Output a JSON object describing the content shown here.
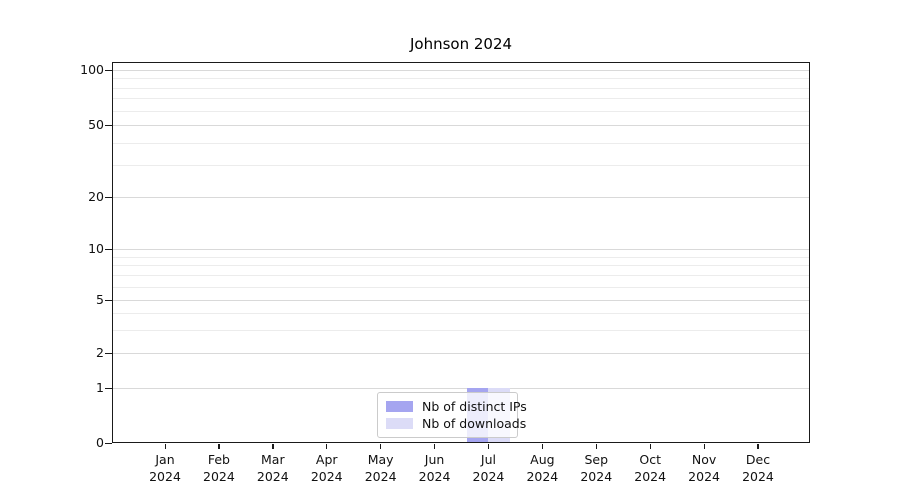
{
  "chart_data": {
    "type": "bar",
    "title": "Johnson 2024",
    "categories": [
      "Jan 2024",
      "Feb 2024",
      "Mar 2024",
      "Apr 2024",
      "May 2024",
      "Jun 2024",
      "Jul 2024",
      "Aug 2024",
      "Sep 2024",
      "Oct 2024",
      "Nov 2024",
      "Dec 2024"
    ],
    "series": [
      {
        "name": "Nb of distinct IPs",
        "color": "#a5a5f0",
        "values": [
          0,
          0,
          0,
          0,
          0,
          0,
          1,
          0,
          0,
          0,
          0,
          0
        ]
      },
      {
        "name": "Nb of downloads",
        "color": "#dcdcf7",
        "values": [
          0,
          0,
          0,
          0,
          0,
          0,
          1,
          0,
          0,
          0,
          0,
          0
        ]
      }
    ],
    "yscale": "symlog",
    "ylim": [
      0,
      111
    ],
    "y_major_ticks": [
      {
        "value": 100,
        "label": "100"
      },
      {
        "value": 50,
        "label": "50"
      },
      {
        "value": 20,
        "label": "20"
      },
      {
        "value": 10,
        "label": "10"
      },
      {
        "value": 5,
        "label": "5"
      },
      {
        "value": 2,
        "label": "2"
      },
      {
        "value": 1,
        "label": "1"
      },
      {
        "value": 0,
        "label": "0"
      }
    ],
    "y_minor_ticks": [
      3,
      4,
      6,
      7,
      8,
      9,
      30,
      40,
      60,
      70,
      80,
      90
    ],
    "grid": true,
    "legend_position": "lower center",
    "colors": {
      "major_grid": "#d9d9d9",
      "minor_grid": "#ececec",
      "axis": "#1a1a1a",
      "text": "#111111"
    }
  }
}
